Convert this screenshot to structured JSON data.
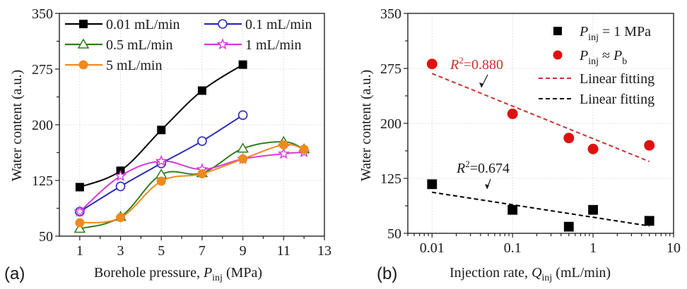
{
  "chart_data": [
    {
      "id": "a",
      "type": "line",
      "panel_label": "(a)",
      "title": "",
      "xlabel": "Borehole pressure, ",
      "xlabel_var": "P",
      "xlabel_sub": "inj",
      "xlabel_unit": " (MPa)",
      "ylabel": "Water content (a.u.)",
      "xlim": [
        0,
        13
      ],
      "ylim": [
        50,
        350
      ],
      "xticks": [
        1,
        3,
        5,
        7,
        9,
        11,
        13
      ],
      "yticks": [
        50,
        125,
        200,
        275,
        350
      ],
      "grid": true,
      "legend_position": "top-left",
      "series": [
        {
          "name": "0.01 mL/min",
          "color": "#000000",
          "marker": "square-filled",
          "x": [
            1,
            3,
            5,
            7,
            9
          ],
          "values": [
            116,
            138,
            193,
            246,
            281
          ]
        },
        {
          "name": "0.1 mL/min",
          "color": "#2a2ab8",
          "marker": "circle-open",
          "x": [
            1,
            3,
            5,
            7,
            9
          ],
          "values": [
            83,
            117,
            148,
            178,
            213
          ]
        },
        {
          "name": "0.5 mL/min",
          "color": "#2e7d1f",
          "marker": "triangle-open",
          "x": [
            1,
            3,
            5,
            7,
            9,
            11,
            12
          ],
          "values": [
            60,
            76,
            133,
            135,
            168,
            177,
            167
          ]
        },
        {
          "name": "1 mL/min",
          "color": "#d63ad6",
          "marker": "star-open",
          "x": [
            1,
            3,
            5,
            7,
            9,
            11,
            12
          ],
          "values": [
            83,
            131,
            151,
            140,
            154,
            161,
            163
          ]
        },
        {
          "name": "5 mL/min",
          "color": "#ef8a1e",
          "marker": "circle-filled",
          "x": [
            1,
            3,
            5,
            7,
            9,
            11,
            12
          ],
          "values": [
            68,
            75,
            124,
            134,
            154,
            173,
            167
          ]
        }
      ]
    },
    {
      "id": "b",
      "type": "scatter",
      "panel_label": "(b)",
      "title": "",
      "xlabel": "Injection rate, ",
      "xlabel_var": "Q",
      "xlabel_sub": "inj",
      "xlabel_unit": " (mL/min)",
      "ylabel": "Water content (a.u.)",
      "xscale": "log",
      "xlim": [
        0.005,
        10
      ],
      "ylim": [
        50,
        350
      ],
      "xticks": [
        0.01,
        0.1,
        1,
        10
      ],
      "xtick_labels": [
        "0.01",
        "0.1",
        "1",
        "10"
      ],
      "yticks": [
        50,
        125,
        200,
        275,
        350
      ],
      "grid": true,
      "legend_position": "top-right",
      "series": [
        {
          "name": "P_inj = 1 MPa",
          "legend_var": "P",
          "legend_sub": "inj",
          "legend_rest": " = 1 MPa",
          "color": "#000000",
          "marker": "square-filled",
          "x": [
            0.01,
            0.1,
            0.5,
            1,
            5
          ],
          "values": [
            117,
            82,
            59,
            82,
            67
          ]
        },
        {
          "name": "P_inj ≈ P_b",
          "legend_var": "P",
          "legend_sub": "inj",
          "legend_rest": " ≈ ",
          "legend_var2": "P",
          "legend_sub2": "b",
          "color": "#e01010",
          "marker": "circle-filled",
          "x": [
            0.01,
            0.1,
            0.5,
            1,
            5
          ],
          "values": [
            281,
            213,
            180,
            165,
            170
          ]
        }
      ],
      "fits": [
        {
          "name": "Linear fitting",
          "color": "#c83232",
          "x": [
            0.01,
            5
          ],
          "values": [
            268,
            148
          ],
          "r2_label": "=0.880",
          "r2_prefix": "R",
          "r2_sup": "2"
        },
        {
          "name": "Linear fitting",
          "color": "#000000",
          "x": [
            0.01,
            5
          ],
          "values": [
            106,
            60
          ],
          "r2_label": "=0.674",
          "r2_prefix": "R",
          "r2_sup": "2"
        }
      ]
    }
  ]
}
